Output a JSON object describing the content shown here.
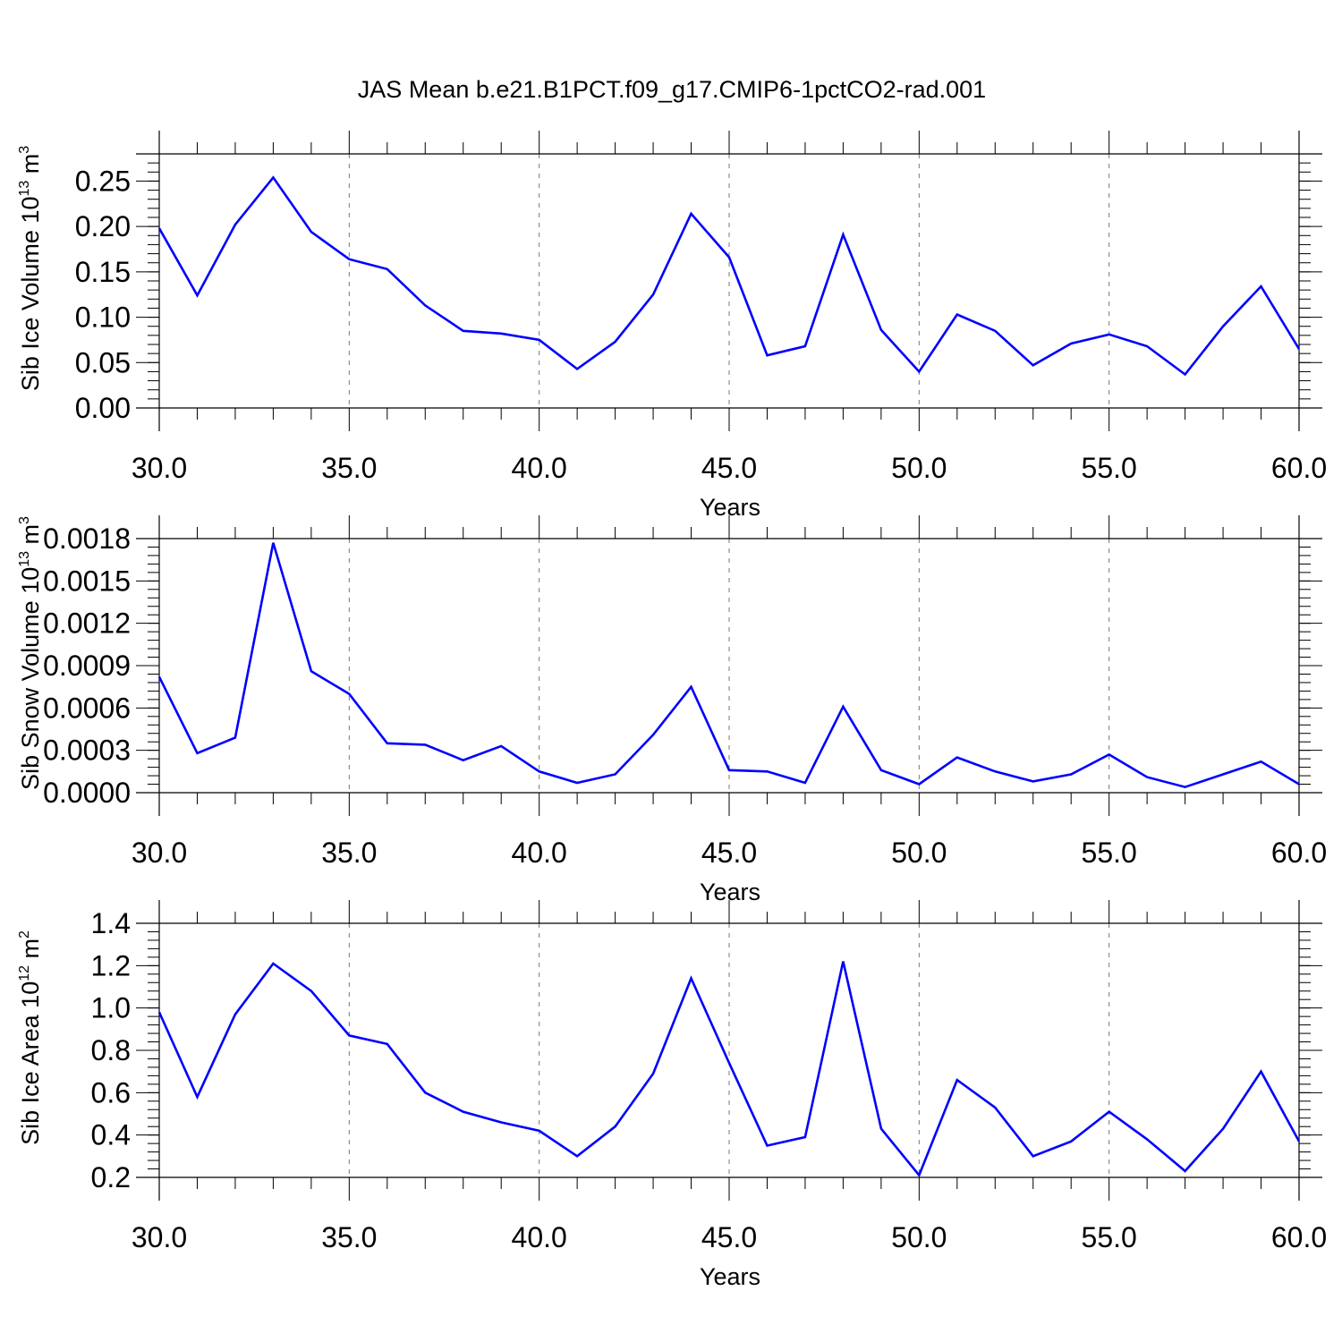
{
  "title": "JAS Mean b.e21.B1PCT.f09_g17.CMIP6-1pctCO2-rad.001",
  "line_color": "#0000ff",
  "chart_data": [
    {
      "type": "line",
      "xlabel": "Years",
      "ylabel": {
        "text": "Sib Ice Volume 10",
        "sup": "13",
        "unit": " m",
        "unit_sup": "3"
      },
      "xlim": [
        30,
        60
      ],
      "ylim": [
        0,
        0.28
      ],
      "xticks": [
        30,
        35,
        40,
        45,
        50,
        55,
        60
      ],
      "xtick_labels": [
        "30.0",
        "35.0",
        "40.0",
        "45.0",
        "50.0",
        "55.0",
        "60.0"
      ],
      "yticks": [
        0,
        0.05,
        0.1,
        0.15,
        0.2,
        0.25
      ],
      "ytick_labels": [
        "0.00",
        "0.05",
        "0.10",
        "0.15",
        "0.20",
        "0.25"
      ],
      "grid": "x-dashed",
      "x": [
        30,
        31,
        32,
        33,
        34,
        35,
        36,
        37,
        38,
        39,
        40,
        41,
        42,
        43,
        44,
        45,
        46,
        47,
        48,
        49,
        50,
        51,
        52,
        53,
        54,
        55,
        56,
        57,
        58,
        59,
        60
      ],
      "series": [
        {
          "values": [
            0.198,
            0.124,
            0.202,
            0.254,
            0.194,
            0.164,
            0.153,
            0.113,
            0.085,
            0.082,
            0.075,
            0.043,
            0.073,
            0.125,
            0.214,
            0.166,
            0.058,
            0.068,
            0.191,
            0.086,
            0.04,
            0.103,
            0.085,
            0.047,
            0.071,
            0.081,
            0.068,
            0.037,
            0.09,
            0.134,
            0.065
          ]
        }
      ]
    },
    {
      "type": "line",
      "xlabel": "Years",
      "ylabel": {
        "text": "Sib Snow Volume 10",
        "sup": "13",
        "unit": " m",
        "unit_sup": "3"
      },
      "xlim": [
        30,
        60
      ],
      "ylim": [
        0,
        0.0018
      ],
      "xticks": [
        30,
        35,
        40,
        45,
        50,
        55,
        60
      ],
      "xtick_labels": [
        "30.0",
        "35.0",
        "40.0",
        "45.0",
        "50.0",
        "55.0",
        "60.0"
      ],
      "yticks": [
        0,
        0.0003,
        0.0006,
        0.0009,
        0.0012,
        0.0015,
        0.0018
      ],
      "ytick_labels": [
        "0.0000",
        "0.0003",
        "0.0006",
        "0.0009",
        "0.0012",
        "0.0015",
        "0.0018"
      ],
      "grid": "x-dashed",
      "x": [
        30,
        31,
        32,
        33,
        34,
        35,
        36,
        37,
        38,
        39,
        40,
        41,
        42,
        43,
        44,
        45,
        46,
        47,
        48,
        49,
        50,
        51,
        52,
        53,
        54,
        55,
        56,
        57,
        58,
        59,
        60
      ],
      "series": [
        {
          "values": [
            0.00082,
            0.00028,
            0.00039,
            0.00177,
            0.00086,
            0.0007,
            0.00035,
            0.00034,
            0.00023,
            0.00033,
            0.00015,
            7e-05,
            0.00013,
            0.00041,
            0.00075,
            0.00016,
            0.00015,
            7e-05,
            0.00061,
            0.00016,
            6e-05,
            0.00025,
            0.00015,
            8e-05,
            0.00013,
            0.00027,
            0.00011,
            4e-05,
            0.00013,
            0.00022,
            6e-05
          ]
        }
      ]
    },
    {
      "type": "line",
      "xlabel": "Years",
      "ylabel": {
        "text": "Sib Ice Area 10",
        "sup": "12",
        "unit": " m",
        "unit_sup": "2"
      },
      "xlim": [
        30,
        60
      ],
      "ylim": [
        0.2,
        1.4
      ],
      "xticks": [
        30,
        35,
        40,
        45,
        50,
        55,
        60
      ],
      "xtick_labels": [
        "30.0",
        "35.0",
        "40.0",
        "45.0",
        "50.0",
        "55.0",
        "60.0"
      ],
      "yticks": [
        0.2,
        0.4,
        0.6,
        0.8,
        1.0,
        1.2,
        1.4
      ],
      "ytick_labels": [
        "0.2",
        "0.4",
        "0.6",
        "0.8",
        "1.0",
        "1.2",
        "1.4"
      ],
      "grid": "x-dashed",
      "x": [
        30,
        31,
        32,
        33,
        34,
        35,
        36,
        37,
        38,
        39,
        40,
        41,
        42,
        43,
        44,
        45,
        46,
        47,
        48,
        49,
        50,
        51,
        52,
        53,
        54,
        55,
        56,
        57,
        58,
        59,
        60
      ],
      "series": [
        {
          "values": [
            0.98,
            0.58,
            0.97,
            1.21,
            1.08,
            0.87,
            0.83,
            0.6,
            0.51,
            0.46,
            0.42,
            0.3,
            0.44,
            0.69,
            1.14,
            0.74,
            0.35,
            0.39,
            1.22,
            0.43,
            0.21,
            0.66,
            0.53,
            0.3,
            0.37,
            0.51,
            0.38,
            0.23,
            0.43,
            0.7,
            0.37
          ]
        }
      ]
    }
  ]
}
